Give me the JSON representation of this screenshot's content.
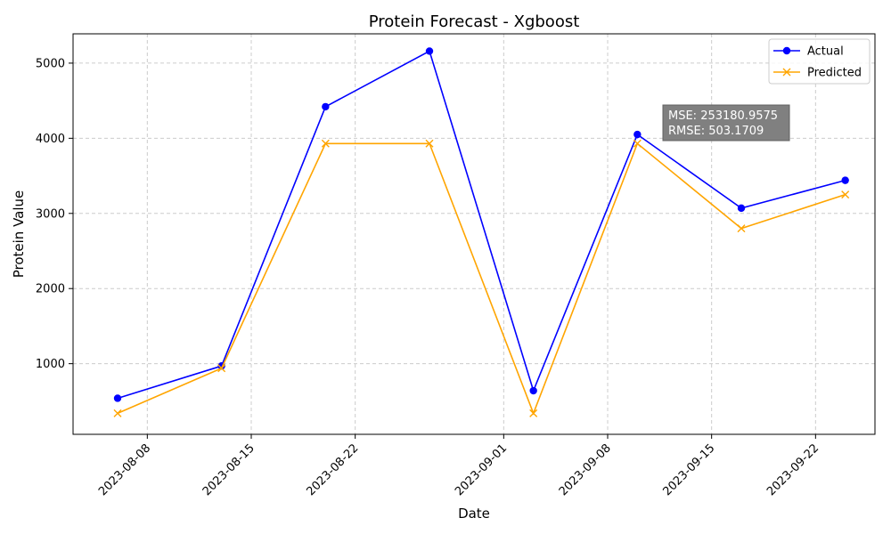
{
  "chart_data": {
    "type": "line",
    "title": "Protein Forecast - Xgboost",
    "xlabel": "Date",
    "ylabel": "Protein Value",
    "x_ticks": [
      "2023-08-08",
      "2023-08-15",
      "2023-08-22",
      "2023-09-01",
      "2023-09-08",
      "2023-09-15",
      "2023-09-22"
    ],
    "y_ticks": [
      1000,
      2000,
      3000,
      4000,
      5000
    ],
    "x_range": [
      "2023-08-03",
      "2023-09-26"
    ],
    "ylim": [
      60,
      5390
    ],
    "grid": true,
    "legend_position": "top-right",
    "x": [
      "2023-08-06",
      "2023-08-13",
      "2023-08-20",
      "2023-08-27",
      "2023-09-03",
      "2023-09-10",
      "2023-09-17",
      "2023-09-24"
    ],
    "series": [
      {
        "name": "Actual",
        "color": "#0000ff",
        "marker": "circle",
        "values": [
          540,
          970,
          4420,
          5160,
          640,
          4050,
          3070,
          3440
        ]
      },
      {
        "name": "Predicted",
        "color": "#ffa500",
        "marker": "x",
        "values": [
          340,
          940,
          3930,
          3930,
          340,
          3930,
          2800,
          3250
        ]
      }
    ],
    "annotation": {
      "lines": [
        "MSE: 253180.9575",
        "RMSE: 503.1709"
      ],
      "position": "upper-right"
    }
  }
}
